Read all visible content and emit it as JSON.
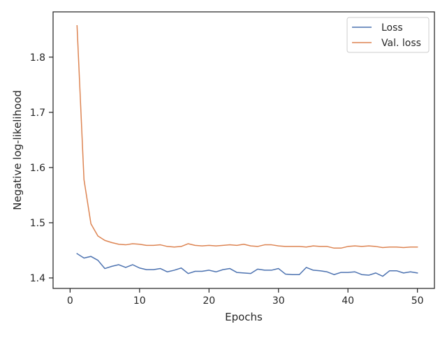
{
  "chart_data": {
    "type": "line",
    "xlabel": "Epochs",
    "ylabel": "Negative log-likelihood",
    "xlim": [
      -2.45,
      52.45
    ],
    "ylim": [
      1.381,
      1.882
    ],
    "xticks": [
      0,
      10,
      20,
      30,
      40,
      50
    ],
    "yticks": [
      1.4,
      1.5,
      1.6,
      1.7,
      1.8
    ],
    "ytick_labels": [
      "1.4",
      "1.5",
      "1.6",
      "1.7",
      "1.8"
    ],
    "grid": false,
    "legend_position": "top-right",
    "x": [
      1,
      2,
      3,
      4,
      5,
      6,
      7,
      8,
      9,
      10,
      11,
      12,
      13,
      14,
      15,
      16,
      17,
      18,
      19,
      20,
      21,
      22,
      23,
      24,
      25,
      26,
      27,
      28,
      29,
      30,
      31,
      32,
      33,
      34,
      35,
      36,
      37,
      38,
      39,
      40,
      41,
      42,
      43,
      44,
      45,
      46,
      47,
      48,
      49,
      50
    ],
    "series": [
      {
        "name": "Loss",
        "color": "#4c72b0",
        "values": [
          1.444,
          1.436,
          1.439,
          1.432,
          1.417,
          1.421,
          1.424,
          1.419,
          1.424,
          1.418,
          1.415,
          1.415,
          1.417,
          1.411,
          1.414,
          1.418,
          1.408,
          1.412,
          1.412,
          1.414,
          1.411,
          1.415,
          1.417,
          1.41,
          1.409,
          1.408,
          1.416,
          1.414,
          1.414,
          1.417,
          1.407,
          1.406,
          1.406,
          1.419,
          1.414,
          1.413,
          1.411,
          1.406,
          1.41,
          1.41,
          1.411,
          1.406,
          1.405,
          1.409,
          1.403,
          1.413,
          1.413,
          1.409,
          1.411,
          1.409
        ]
      },
      {
        "name": "Val. loss",
        "color": "#dd8452",
        "values": [
          1.857,
          1.578,
          1.498,
          1.476,
          1.468,
          1.464,
          1.461,
          1.46,
          1.462,
          1.461,
          1.459,
          1.459,
          1.46,
          1.457,
          1.456,
          1.457,
          1.462,
          1.459,
          1.458,
          1.459,
          1.458,
          1.459,
          1.46,
          1.459,
          1.461,
          1.458,
          1.457,
          1.46,
          1.46,
          1.458,
          1.457,
          1.457,
          1.457,
          1.456,
          1.458,
          1.457,
          1.457,
          1.454,
          1.454,
          1.457,
          1.458,
          1.457,
          1.458,
          1.457,
          1.455,
          1.456,
          1.456,
          1.455,
          1.456,
          1.456
        ]
      }
    ]
  }
}
